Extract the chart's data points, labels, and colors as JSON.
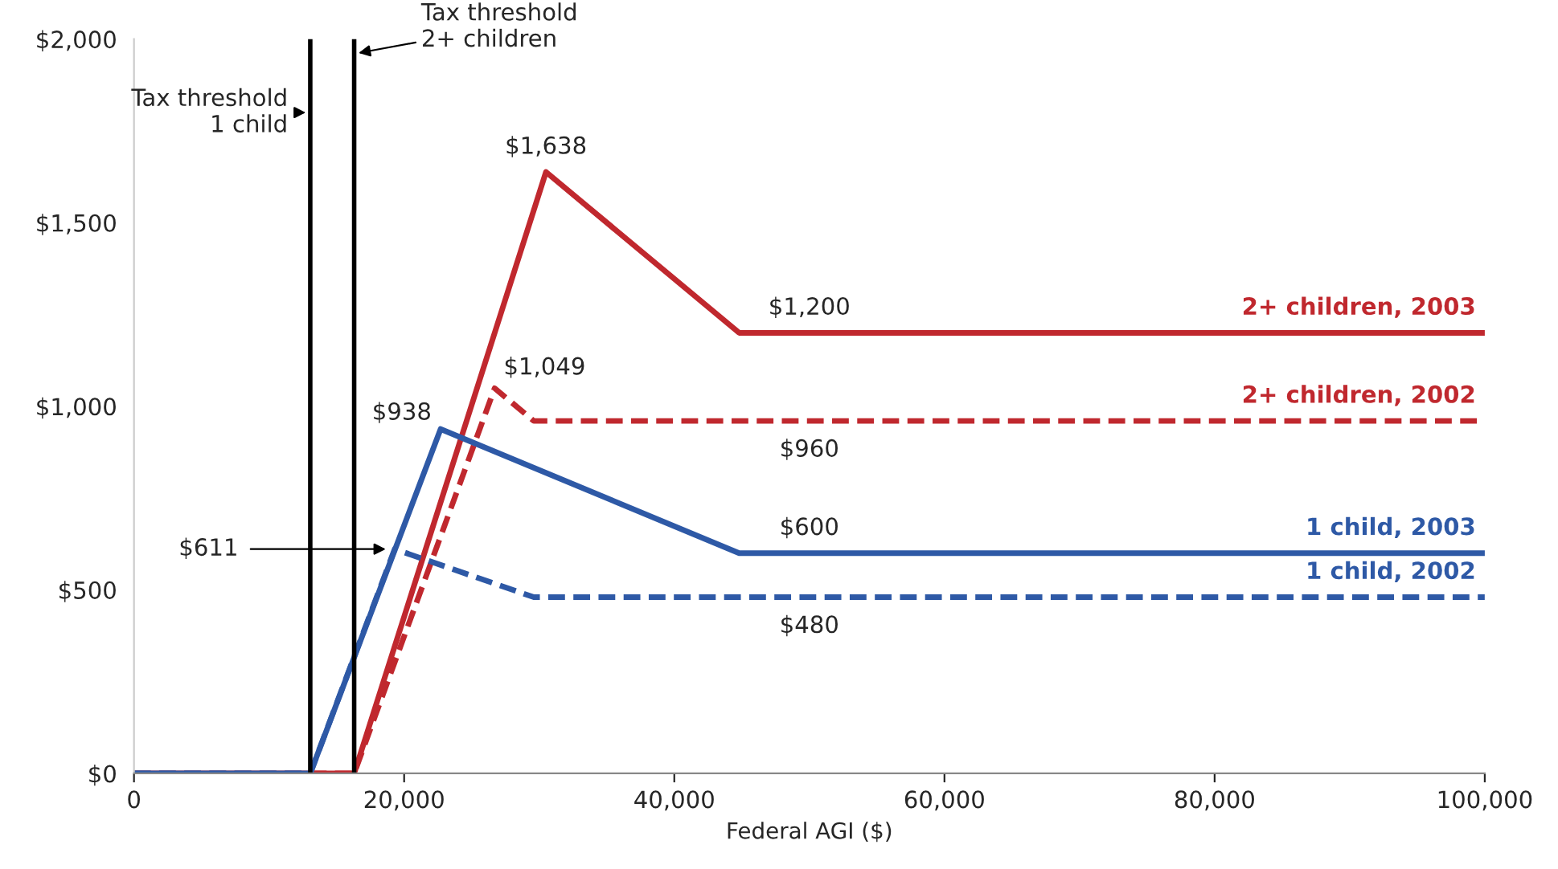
{
  "chart_data": {
    "type": "line",
    "xlabel": "Federal AGI ($)",
    "xlim": [
      0,
      100000
    ],
    "xticks": [
      0,
      {
        "value": 20000,
        "label": "20,000"
      },
      {
        "value": 40000,
        "label": "40,000"
      },
      {
        "value": 60000,
        "label": "60,000"
      },
      {
        "value": 80000,
        "label": "80,000"
      },
      {
        "value": 100000,
        "label": "100,000"
      }
    ],
    "ylim": [
      0,
      2000
    ],
    "yticks": [
      {
        "value": 0,
        "label": "$0"
      },
      {
        "value": 500,
        "label": "$500"
      },
      {
        "value": 1000,
        "label": "$1,000"
      },
      {
        "value": 1500,
        "label": "$1,500"
      },
      {
        "value": 2000,
        "label": "$2,000"
      }
    ],
    "grid": false,
    "series": [
      {
        "name": "2+ children, 2003",
        "color": "#c0282e",
        "line_style": "solid",
        "x": [
          0,
          16300,
          30500,
          44800,
          100000
        ],
        "values": [
          0,
          0,
          1638,
          1200,
          1200
        ]
      },
      {
        "name": "2+ children, 2002",
        "color": "#c0282e",
        "line_style": "dashed",
        "x": [
          0,
          16300,
          26700,
          29600,
          100000
        ],
        "values": [
          0,
          0,
          1049,
          960,
          960
        ]
      },
      {
        "name": "1 child, 2003",
        "color": "#2e59a6",
        "line_style": "solid",
        "x": [
          0,
          13050,
          22700,
          44800,
          100000
        ],
        "values": [
          0,
          0,
          938,
          600,
          600
        ]
      },
      {
        "name": "1 child, 2002",
        "color": "#2e59a6",
        "line_style": "dashed",
        "x": [
          0,
          13050,
          19300,
          29600,
          100000
        ],
        "values": [
          0,
          0,
          611,
          480,
          480
        ]
      }
    ],
    "ref_lines": [
      {
        "axis": "x",
        "value": 13050,
        "label": "Tax threshold\n1 child",
        "color": "#000000"
      },
      {
        "axis": "x",
        "value": 16300,
        "label": "Tax threshold\n2+ children",
        "color": "#000000"
      }
    ],
    "annotations": [
      {
        "text": "$1,638",
        "x": 30500,
        "y": 1638
      },
      {
        "text": "$1,049",
        "x": 26700,
        "y": 1049
      },
      {
        "text": "$938",
        "x": 22700,
        "y": 938
      },
      {
        "text": "$611",
        "x": 19300,
        "y": 611
      },
      {
        "text": "$1,200",
        "x": 50000,
        "y": 1200
      },
      {
        "text": "$960",
        "x": 50000,
        "y": 960
      },
      {
        "text": "$600",
        "x": 50000,
        "y": 600
      },
      {
        "text": "$480",
        "x": 50000,
        "y": 480
      }
    ]
  }
}
